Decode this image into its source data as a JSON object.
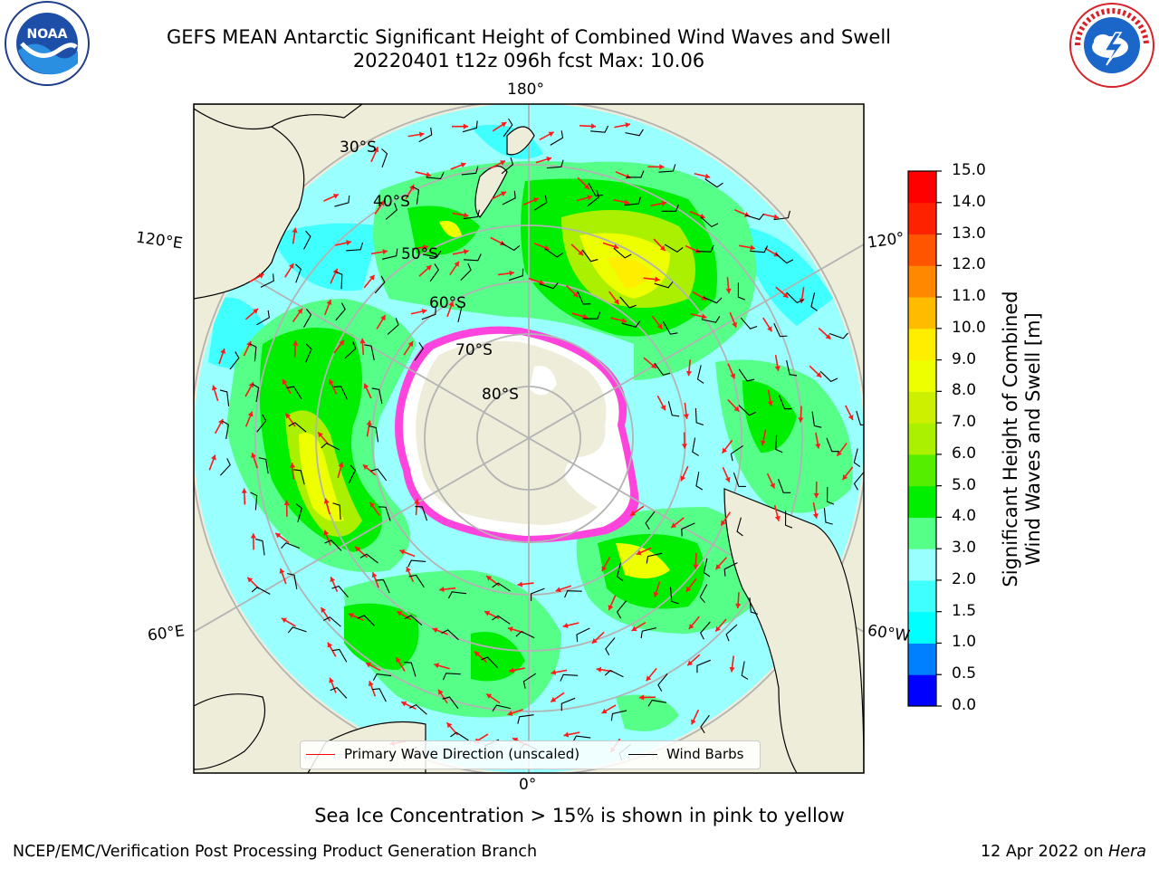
{
  "header": {
    "title_line1": "GEFS MEAN Antarctic Significant Height of Combined Wind Waves and Swell",
    "title_line2": "20220401 t12z 096h fcst   Max: 10.06"
  },
  "logos": {
    "left": {
      "name": "noaa-logo",
      "text": "NOAA",
      "ring_text": "NATIONAL OCEANIC AND ATMOSPHERIC ADMINISTRATION · U.S. DEPARTMENT OF COMMERCE"
    },
    "right": {
      "name": "nws-logo",
      "ring_text": "NATIONAL WEATHER SERVICE"
    }
  },
  "map": {
    "projection": "south-polar-stereographic",
    "longitude_labels": {
      "top": "180°",
      "bottom": "0°",
      "upper_left": "120°E",
      "lower_left": "60°E",
      "upper_right": "120°",
      "lower_right": "60°W"
    },
    "latitude_labels": [
      "30°S",
      "40°S",
      "50°S",
      "60°S",
      "70°S",
      "80°S"
    ],
    "colors": {
      "land": "#eeedd9",
      "ice": "#ffffff",
      "ice_edge": "#ff44dd",
      "grid": "#b3b3b3",
      "wave_arrow": "#ff1a1a",
      "barb": "#000000"
    }
  },
  "legend": {
    "items": [
      {
        "label": "Primary Wave Direction (unscaled)",
        "color": "#ff0000"
      },
      {
        "label": "Wind Barbs",
        "color": "#000000"
      }
    ]
  },
  "colorbar": {
    "label_line1": "Significant Height of Combined",
    "label_line2": "Wind Waves and Swell [m]",
    "ticks": [
      "15.0",
      "14.0",
      "13.0",
      "12.0",
      "11.0",
      "10.0",
      "9.0",
      "8.0",
      "7.0",
      "6.0",
      "5.0",
      "4.0",
      "3.0",
      "2.0",
      "1.5",
      "1.0",
      "0.5",
      "0.0"
    ],
    "colors": [
      "#0000ff",
      "#0080ff",
      "#00ffff",
      "#40ffff",
      "#9affff",
      "#55ff88",
      "#00ee00",
      "#55ee00",
      "#aaf000",
      "#ccf000",
      "#eeff00",
      "#ffee00",
      "#ffbb00",
      "#ff8800",
      "#ff5500",
      "#ff2200",
      "#ff0000"
    ],
    "levels": [
      0.0,
      0.5,
      1.0,
      1.5,
      2.0,
      3.0,
      4.0,
      5.0,
      6.0,
      7.0,
      8.0,
      9.0,
      10.0,
      11.0,
      12.0,
      13.0,
      14.0,
      15.0
    ]
  },
  "notes": {
    "sea_ice": "Sea Ice Concentration > 15% is shown in pink to yellow"
  },
  "footer": {
    "left": "NCEP/EMC/Verification Post Processing Product Generation Branch",
    "date": "12 Apr 2022 on ",
    "host": "Hera"
  }
}
